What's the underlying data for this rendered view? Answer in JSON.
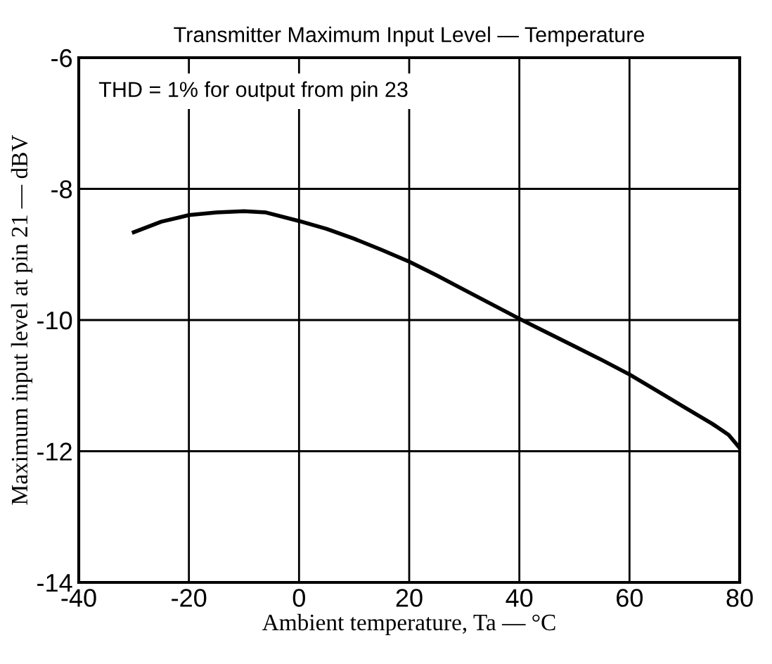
{
  "chart_data": {
    "type": "line",
    "title": "Transmitter Maximum Input Level — Temperature",
    "xlabel": "Ambient temperature, Ta — °C",
    "ylabel": "Maximum input level at pin 21 — dBV",
    "x": [
      -30,
      -25,
      -20,
      -15,
      -10,
      -6,
      0,
      5,
      10,
      15,
      20,
      25,
      30,
      35,
      40,
      45,
      50,
      55,
      60,
      65,
      70,
      75,
      78,
      80
    ],
    "series": [
      {
        "color": "#000000",
        "values": [
          -8.66,
          -8.5,
          -8.4,
          -8.36,
          -8.34,
          -8.36,
          -8.49,
          -8.61,
          -8.76,
          -8.93,
          -9.11,
          -9.32,
          -9.54,
          -9.76,
          -9.98,
          -10.19,
          -10.4,
          -10.61,
          -10.83,
          -11.08,
          -11.33,
          -11.58,
          -11.75,
          -11.95
        ]
      }
    ],
    "xlim": [
      -40,
      80
    ],
    "ylim": [
      -14,
      -6
    ],
    "xticks": [
      -40,
      -20,
      0,
      20,
      40,
      60,
      80
    ],
    "yticks": [
      -14,
      -12,
      -10,
      -8,
      -6
    ],
    "grid": true,
    "legend": false,
    "marker": "none",
    "line_style": "solid",
    "annotations": [
      "THD = 1% for output from pin 23"
    ]
  }
}
